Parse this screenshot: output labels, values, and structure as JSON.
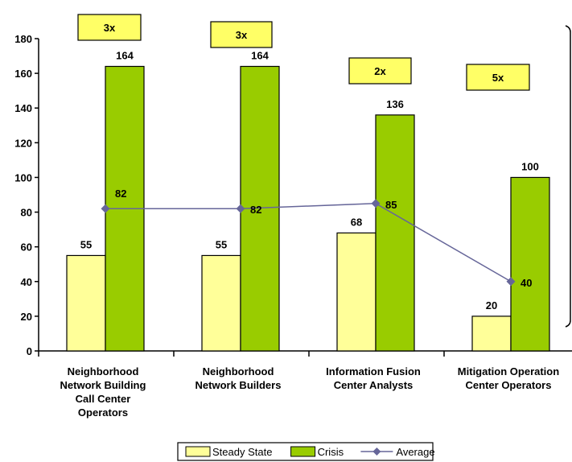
{
  "chart_data": {
    "type": "bar",
    "categories": [
      [
        "Neighborhood",
        "Network Building",
        "Call Center",
        "Operators"
      ],
      [
        "Neighborhood",
        "Network Builders"
      ],
      [
        "Information Fusion",
        "Center Analysts"
      ],
      [
        "Mitigation Operation",
        "Center Operators"
      ]
    ],
    "series": [
      {
        "name": "Steady State",
        "type": "bar",
        "color": "#FFFF99",
        "values": [
          55,
          55,
          68,
          20
        ]
      },
      {
        "name": "Crisis",
        "type": "bar",
        "color": "#99CC00",
        "values": [
          164,
          164,
          136,
          100
        ]
      },
      {
        "name": "Average",
        "type": "line",
        "color": "#666699",
        "values": [
          82,
          82,
          85,
          40
        ]
      }
    ],
    "multipliers": [
      "3x",
      "3x",
      "2x",
      "5x"
    ],
    "multiplier_color": "#FFFF66",
    "ylim": [
      0,
      180
    ],
    "yticks": [
      0,
      20,
      40,
      60,
      80,
      100,
      120,
      140,
      160,
      180
    ],
    "grid": false,
    "legend": "bottom"
  }
}
